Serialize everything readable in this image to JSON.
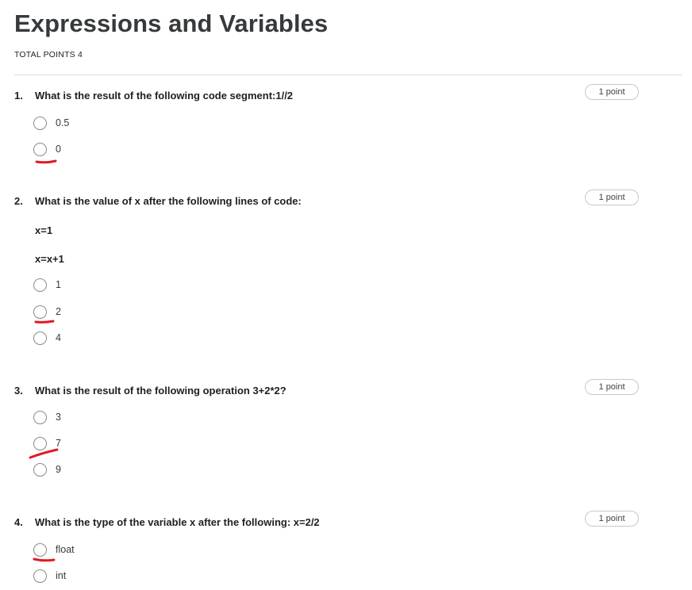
{
  "page": {
    "title": "Expressions and Variables",
    "total_points": "TOTAL POINTS 4"
  },
  "questions": [
    {
      "number": "1.",
      "text": "What is the result of the following code segment:1//2",
      "points": "1 point",
      "code": [],
      "options": [
        "0.5",
        "0"
      ],
      "marked_option": "0"
    },
    {
      "number": "2.",
      "text": "What is the value of x after the following lines of code:",
      "points": "1 point",
      "code": [
        "x=1",
        "x=x+1"
      ],
      "options": [
        "1",
        "2",
        "4"
      ],
      "marked_option": "2"
    },
    {
      "number": "3.",
      "text": "What is the result of the following operation 3+2*2?",
      "points": "1 point",
      "code": [],
      "options": [
        "3",
        "7",
        "9"
      ],
      "marked_option": "7"
    },
    {
      "number": "4.",
      "text": "What is the type of the variable x after the following: x=2/2",
      "points": "1 point",
      "code": [],
      "options": [
        "float",
        "int"
      ],
      "marked_option": "float"
    }
  ],
  "colors": {
    "annotation_mark": "#e01b24",
    "title": "#373a3c",
    "radio_border": "#8a8a8a",
    "divider": "#dcdcdc"
  }
}
